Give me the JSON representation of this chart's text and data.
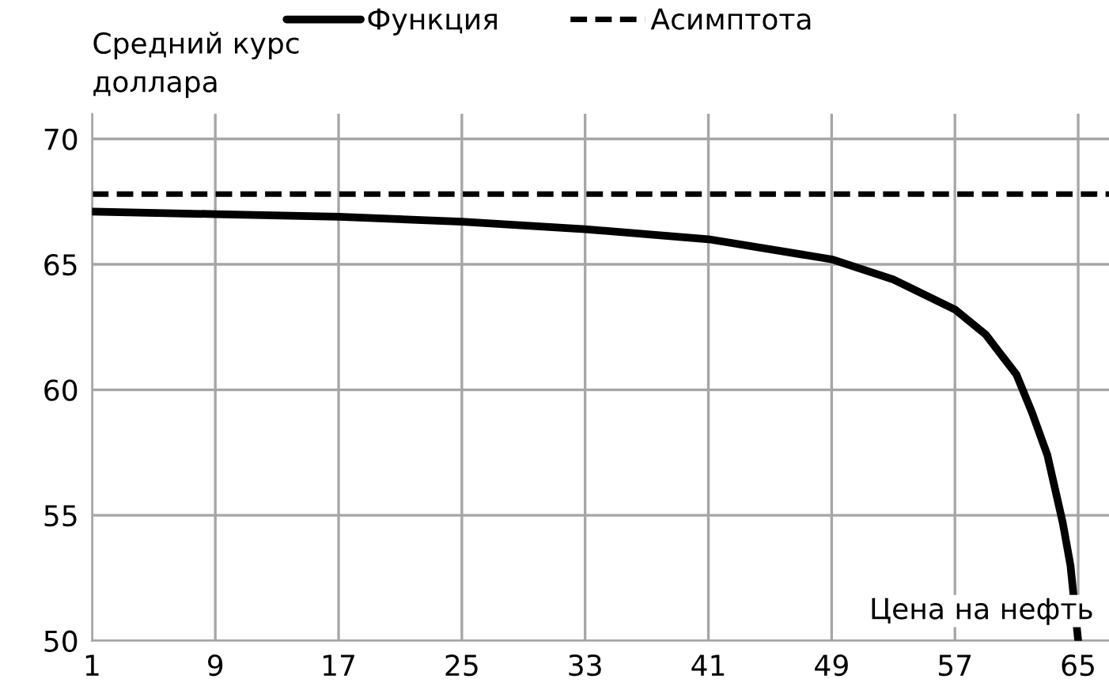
{
  "chart_data": {
    "type": "line",
    "xlabel": "Цена на нефть",
    "ylabel": "Средний курс\nдоллара",
    "x": [
      1,
      9,
      17,
      25,
      33,
      41,
      49,
      53,
      57,
      59,
      61,
      62,
      63,
      64,
      64.5,
      65
    ],
    "series": [
      {
        "name": "Функция",
        "color": "#000000",
        "line_style": "solid",
        "values": [
          67.1,
          67.0,
          66.9,
          66.7,
          66.4,
          66.0,
          65.2,
          64.4,
          63.2,
          62.2,
          60.6,
          59.1,
          57.4,
          54.7,
          53.0,
          50.0
        ]
      }
    ],
    "ref_lines": [
      {
        "axis": "y",
        "value": 67.8,
        "label": "Асимптота",
        "color": "#000000",
        "line_style": "dashed"
      }
    ],
    "xlim": [
      1,
      67
    ],
    "xticks": [
      1,
      9,
      17,
      25,
      33,
      41,
      49,
      57,
      65
    ],
    "ylim": [
      50,
      71
    ],
    "yticks": [
      50,
      55,
      60,
      65,
      70
    ],
    "grid": true,
    "legend": "top",
    "marker": "none"
  }
}
